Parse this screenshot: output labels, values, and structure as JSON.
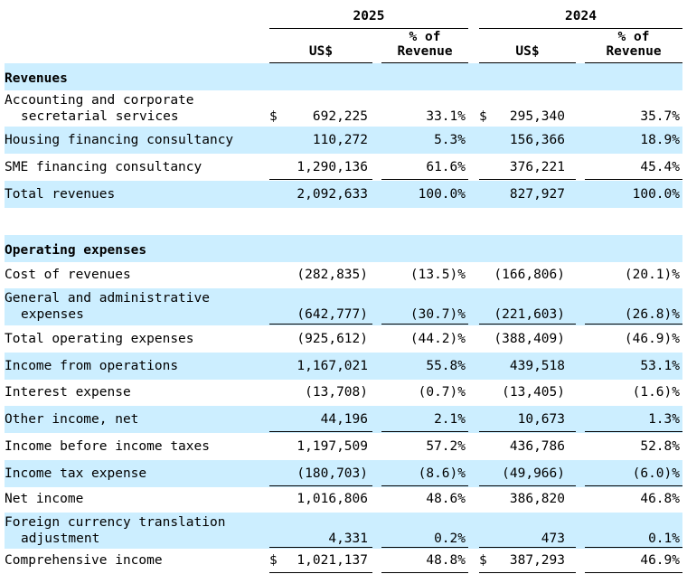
{
  "header": {
    "years": [
      "2025",
      "2024"
    ],
    "usd_label": "US$",
    "pct_label_line1": "% of",
    "pct_label_line2": "Revenue"
  },
  "rows": [
    {
      "label": "Revenues",
      "section": true,
      "band": true
    },
    {
      "label": "Accounting and corporate",
      "label2": "secretarial services",
      "dollar": true,
      "v2025": "692,225",
      "p2025": "33.1%",
      "v2024": "295,340",
      "p2024": "35.7%"
    },
    {
      "label": "Housing financing consultancy",
      "band": true,
      "v2025": "110,272",
      "p2025": "5.3%",
      "v2024": "156,366",
      "p2024": "18.9%"
    },
    {
      "label": "SME financing consultancy",
      "underline": true,
      "v2025": "1,290,136",
      "p2025": "61.6%",
      "v2024": "376,221",
      "p2024": "45.4%"
    },
    {
      "label": "Total revenues",
      "band": true,
      "v2025": "2,092,633",
      "p2025": "100.0%",
      "v2024": "827,927",
      "p2024": "100.0%"
    },
    {
      "label": "",
      "spacer": true
    },
    {
      "label": "Operating expenses",
      "section": true,
      "band": true
    },
    {
      "label": "Cost of revenues",
      "v2025": "(282,835)",
      "p2025": "(13.5)%",
      "v2024": "(166,806)",
      "p2024": "(20.1)%"
    },
    {
      "label": "General and administrative",
      "label2": "expenses",
      "band": true,
      "underline": true,
      "v2025": "(642,777)",
      "p2025": "(30.7)%",
      "v2024": "(221,603)",
      "p2024": "(26.8)%"
    },
    {
      "label": "Total operating expenses",
      "v2025": "(925,612)",
      "p2025": "(44.2)%",
      "v2024": "(388,409)",
      "p2024": "(46.9)%"
    },
    {
      "label": "Income from operations",
      "band": true,
      "v2025": "1,167,021",
      "p2025": "55.8%",
      "v2024": "439,518",
      "p2024": "53.1%"
    },
    {
      "label": "Interest expense",
      "v2025": "(13,708)",
      "p2025": "(0.7)%",
      "v2024": "(13,405)",
      "p2024": "(1.6)%"
    },
    {
      "label": "Other income, net",
      "band": true,
      "underline": true,
      "v2025": "44,196",
      "p2025": "2.1%",
      "v2024": "10,673",
      "p2024": "1.3%"
    },
    {
      "label": "Income before income taxes",
      "v2025": "1,197,509",
      "p2025": "57.2%",
      "v2024": "436,786",
      "p2024": "52.8%"
    },
    {
      "label": "Income tax expense",
      "band": true,
      "underline": true,
      "v2025": "(180,703)",
      "p2025": "(8.6)%",
      "v2024": "(49,966)",
      "p2024": "(6.0)%"
    },
    {
      "label": "Net income",
      "v2025": "1,016,806",
      "p2025": "48.6%",
      "v2024": "386,820",
      "p2024": "46.8%"
    },
    {
      "label": "Foreign currency translation",
      "label2": "adjustment",
      "band": true,
      "underline": true,
      "v2025": "4,331",
      "p2025": "0.2%",
      "v2024": "473",
      "p2024": "0.1%"
    },
    {
      "label": "Comprehensive income",
      "dollar": true,
      "double": true,
      "v2025": "1,021,137",
      "p2025": "48.8%",
      "v2024": "387,293",
      "p2024": "46.9%"
    }
  ],
  "currency_symbol": "$"
}
